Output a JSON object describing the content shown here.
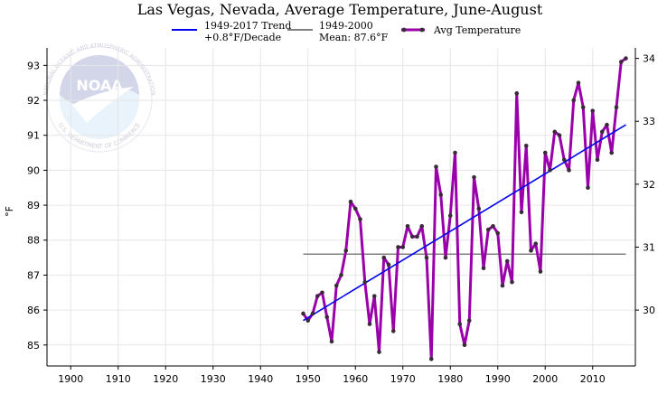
{
  "chart_data": {
    "type": "line",
    "title": "Las Vegas, Nevada, Average Temperature, June-August",
    "ylabel": "°F",
    "y2label": "",
    "xlim": [
      1895,
      2019
    ],
    "ylim": [
      84.4,
      93.5
    ],
    "y2_ticks_celsius": [
      30,
      31,
      32,
      33,
      34
    ],
    "x_ticks": [
      1900,
      1910,
      1920,
      1930,
      1940,
      1950,
      1960,
      1970,
      1980,
      1990,
      2000,
      2010
    ],
    "y_ticks": [
      85,
      86,
      87,
      88,
      89,
      90,
      91,
      92,
      93
    ],
    "grid": true,
    "legend_position": "top",
    "legend": {
      "trend_label_1": "1949-2017 Trend",
      "trend_label_2": "+0.8°F/Decade",
      "mean_label_1": "1949-2000",
      "mean_label_2": "Mean: 87.6°F",
      "series_label": "Avg Temperature"
    },
    "colors": {
      "series": "#9900aa",
      "marker": "#3a2a3a",
      "trend": "#0000ee",
      "mean": "#808080"
    },
    "trend": {
      "x": [
        1949,
        2017
      ],
      "y": [
        85.7,
        91.3
      ]
    },
    "mean": {
      "x": [
        1949,
        2017
      ],
      "y": [
        87.6,
        87.6
      ]
    },
    "series": [
      {
        "name": "Avg Temperature",
        "x": [
          1949,
          1950,
          1951,
          1952,
          1953,
          1954,
          1955,
          1956,
          1957,
          1958,
          1959,
          1960,
          1961,
          1962,
          1963,
          1964,
          1965,
          1966,
          1967,
          1968,
          1969,
          1970,
          1971,
          1972,
          1973,
          1974,
          1975,
          1976,
          1977,
          1978,
          1979,
          1980,
          1981,
          1982,
          1983,
          1984,
          1985,
          1986,
          1987,
          1988,
          1989,
          1990,
          1991,
          1992,
          1993,
          1994,
          1995,
          1996,
          1997,
          1998,
          1999,
          2000,
          2001,
          2002,
          2003,
          2004,
          2005,
          2006,
          2007,
          2008,
          2009,
          2010,
          2011,
          2012,
          2013,
          2014,
          2015,
          2016,
          2017
        ],
        "values": [
          85.9,
          85.7,
          85.9,
          86.4,
          86.5,
          85.8,
          85.1,
          86.7,
          87.0,
          87.7,
          89.1,
          88.9,
          88.6,
          86.8,
          85.6,
          86.4,
          84.8,
          87.5,
          87.3,
          85.4,
          87.8,
          87.8,
          88.4,
          88.1,
          88.1,
          88.4,
          87.5,
          84.6,
          90.1,
          89.3,
          87.5,
          88.7,
          90.5,
          85.6,
          85.0,
          85.7,
          89.8,
          88.9,
          87.2,
          88.3,
          88.4,
          88.2,
          86.7,
          87.4,
          86.8,
          92.2,
          88.8,
          90.7,
          87.7,
          87.9,
          87.1,
          90.5,
          90.0,
          91.1,
          91.0,
          90.3,
          90.0,
          92.0,
          92.5,
          91.8,
          89.5,
          91.7,
          90.3,
          91.1,
          91.3,
          90.5,
          91.8,
          93.1,
          93.2
        ]
      }
    ]
  },
  "logo": {
    "wordmark": "NOAA",
    "ring_text_top": "NATIONAL OCEANIC AND ATMOSPHERIC ADMINISTRATION",
    "ring_text_bottom": "U.S. DEPARTMENT OF COMMERCE"
  }
}
